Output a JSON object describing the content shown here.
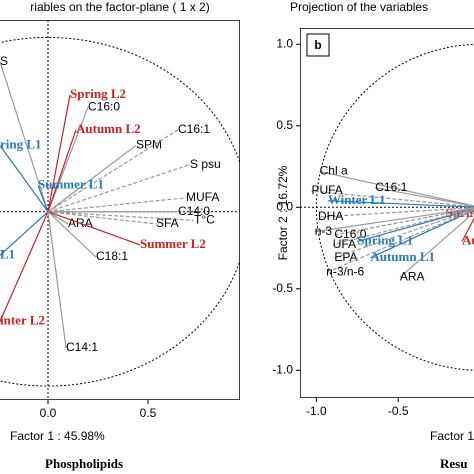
{
  "chart_data": [
    {
      "type": "scatter",
      "title": "riables on the factor-plane (  1 x  2)",
      "xlabel": "Factor 1 : 45.98%",
      "caption": "Phospholipids",
      "xlim": [
        -0.265,
        0.96
      ],
      "ylim": [
        -1.08,
        1.1
      ],
      "xticks": [
        {
          "value": 0,
          "label": "0.0"
        },
        0.5
      ],
      "points": [
        {
          "label": "S",
          "x": -0.24,
          "y": 0.86
        },
        {
          "label": "Spring L2",
          "x": 0.11,
          "y": 0.67,
          "color": "#cc2222"
        },
        {
          "label": "C16:0",
          "x": 0.2,
          "y": 0.6
        },
        {
          "label": "Autumn L2",
          "x": 0.14,
          "y": 0.47,
          "color": "#cc2222"
        },
        {
          "label": "SPM",
          "x": 0.44,
          "y": 0.38
        },
        {
          "label": "C16:1",
          "x": 0.65,
          "y": 0.47
        },
        {
          "label": "ring L1",
          "x": -0.24,
          "y": 0.38,
          "color": "#2a7ab8"
        },
        {
          "label": "S psu",
          "x": 0.71,
          "y": 0.27
        },
        {
          "label": "Summer L1",
          "x": -0.05,
          "y": 0.15,
          "color": "#2a7ab8"
        },
        {
          "label": "MUFA",
          "x": 0.69,
          "y": 0.08
        },
        {
          "label": "C14:0",
          "x": 0.65,
          "y": 0.0
        },
        {
          "label": "T°C",
          "x": 0.73,
          "y": -0.05
        },
        {
          "label": "ARA",
          "x": 0.1,
          "y": -0.07
        },
        {
          "label": "SFA",
          "x": 0.54,
          "y": -0.07
        },
        {
          "label": "Summer L2",
          "x": 0.46,
          "y": -0.19,
          "color": "#cc2222"
        },
        {
          "label": "L1",
          "x": -0.24,
          "y": -0.25,
          "color": "#2a7ab8"
        },
        {
          "label": "C18:1",
          "x": 0.24,
          "y": -0.26
        },
        {
          "label": "inter L2",
          "x": -0.24,
          "y": -0.63,
          "color": "#cc2222"
        },
        {
          "label": "C14:1",
          "x": 0.09,
          "y": -0.78
        }
      ]
    },
    {
      "type": "scatter",
      "title": "Projection of the variables",
      "panel": "b",
      "xlabel": "Factor 1 :",
      "ylabel": "Factor 2 : 16.72%",
      "caption": "Resu",
      "xlim": [
        -1.1,
        0.0
      ],
      "ylim": [
        -1.17,
        1.1
      ],
      "xticks": [
        {
          "value": -1,
          "label": "-1.0"
        },
        -0.5
      ],
      "yticks": [
        {
          "value": 1,
          "label": "1.0"
        },
        0.5,
        {
          "value": 0,
          "label": "0.0"
        },
        -0.5,
        {
          "value": -1,
          "label": "-1.0"
        }
      ],
      "points": [
        {
          "label": "Chl a",
          "x": -0.98,
          "y": 0.22
        },
        {
          "label": "PUFA",
          "x": -1.03,
          "y": 0.1
        },
        {
          "label": "C16:1",
          "x": -0.64,
          "y": 0.12
        },
        {
          "label": "Winter L1",
          "x": -0.93,
          "y": 0.04,
          "color": "#2a7ab8"
        },
        {
          "label": "Sprin",
          "x": -0.21,
          "y": -0.04,
          "color": "#cc2222"
        },
        {
          "label": "DHA",
          "x": -0.99,
          "y": -0.06
        },
        {
          "label": "n-3",
          "x": -1.01,
          "y": -0.15
        },
        {
          "label": "C16:0",
          "x": -0.89,
          "y": -0.17
        },
        {
          "label": "Spring L1",
          "x": -0.75,
          "y": -0.21,
          "color": "#2a7ab8"
        },
        {
          "label": "UFA",
          "x": -0.9,
          "y": -0.23
        },
        {
          "label": "Au",
          "x": -0.11,
          "y": -0.21,
          "color": "#cc2222"
        },
        {
          "label": "EPA",
          "x": -0.89,
          "y": -0.31
        },
        {
          "label": "Autumn L1",
          "x": -0.67,
          "y": -0.31,
          "color": "#2a7ab8"
        },
        {
          "label": "n-3/n-6",
          "x": -0.94,
          "y": -0.4
        },
        {
          "label": "ARA",
          "x": -0.49,
          "y": -0.43
        }
      ]
    }
  ]
}
